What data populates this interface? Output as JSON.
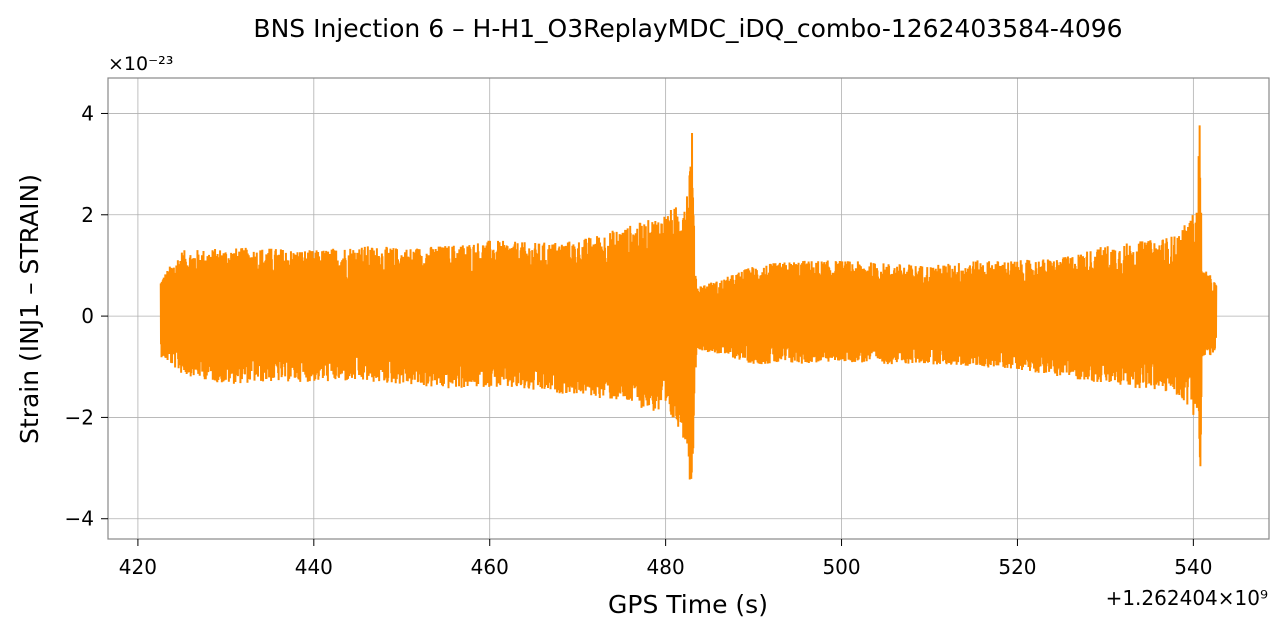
{
  "chart_data": {
    "type": "line",
    "title": "BNS Injection 6 – H-H1_O3ReplayMDC_iDQ_combo-1262403584-4096",
    "xlabel": "GPS Time (s)",
    "ylabel": "Strain (INJ1 – STRAIN)",
    "y_multiplier": "×10⁻²³",
    "x_offset": "+1.262404×10⁹",
    "xlim": [
      416.6,
      548.6
    ],
    "ylim": [
      -4.4,
      4.7
    ],
    "x_ticks": [
      420,
      440,
      460,
      480,
      500,
      520,
      540
    ],
    "x_tick_labels": [
      "420",
      "440",
      "460",
      "480",
      "500",
      "520",
      "540"
    ],
    "y_ticks": [
      4,
      2,
      0,
      -2,
      -4
    ],
    "y_tick_labels": [
      "4",
      "2",
      "0",
      "−2",
      "−4"
    ],
    "grid": true,
    "line_color": "#ff8c00",
    "series": [
      {
        "x_start": 422.6,
        "x_end": 542.6,
        "envelope_x": [
          422.6,
          425,
          430,
          435,
          440,
          445,
          450,
          455,
          460,
          465,
          470,
          475,
          478,
          480,
          481.5,
          482.5,
          483.0,
          483.3,
          483.6,
          484.5,
          486,
          490,
          495,
          500,
          505,
          510,
          515,
          520,
          525,
          530,
          535,
          538,
          539.5,
          540.5,
          540.7,
          541.0,
          541.5,
          542.6
        ],
        "envelope_max": [
          0.75,
          1.3,
          1.35,
          1.35,
          1.3,
          1.4,
          1.35,
          1.4,
          1.5,
          1.45,
          1.5,
          1.75,
          1.9,
          2.05,
          2.2,
          2.6,
          3.7,
          1.2,
          0.6,
          0.65,
          0.7,
          1.0,
          1.1,
          1.1,
          1.05,
          1.0,
          1.1,
          1.1,
          1.15,
          1.4,
          1.5,
          1.6,
          1.9,
          2.2,
          4.25,
          0.9,
          0.9,
          0.65
        ],
        "envelope_min": [
          -0.8,
          -1.15,
          -1.35,
          -1.3,
          -1.3,
          -1.3,
          -1.35,
          -1.45,
          -1.4,
          -1.5,
          -1.55,
          -1.7,
          -1.85,
          -2.0,
          -2.2,
          -2.6,
          -3.9,
          -1.3,
          -0.65,
          -0.7,
          -0.75,
          -0.95,
          -0.95,
          -0.9,
          -0.95,
          -0.95,
          -1.0,
          -1.05,
          -1.2,
          -1.35,
          -1.45,
          -1.55,
          -1.8,
          -2.1,
          -4.0,
          -0.9,
          -0.85,
          -0.7
        ]
      }
    ]
  }
}
